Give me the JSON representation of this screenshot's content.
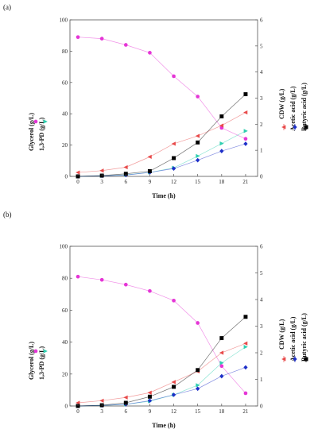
{
  "chart_data": [
    {
      "panel_label": "(a)",
      "type": "line",
      "xlabel": "Time (h)",
      "ylabel_left": [
        "Glycerol (g/L)",
        "1,3-PD (g/L)"
      ],
      "ylabel_right": [
        "CDW (g/L)",
        "Acetic acid (g/L)",
        "Butyric acid (g/L)"
      ],
      "x": [
        0,
        3,
        6,
        9,
        12,
        15,
        18,
        21
      ],
      "xticks": [
        "0",
        "3",
        "6",
        "9",
        "12",
        "15",
        "18",
        "21"
      ],
      "xlim": [
        -1,
        22.5
      ],
      "ylim_left": [
        0,
        100
      ],
      "yticks_left": [
        "0",
        "20",
        "40",
        "60",
        "80",
        "100"
      ],
      "ylim_right": [
        0,
        6
      ],
      "yticks_right": [
        "0",
        "1",
        "2",
        "3",
        "4",
        "5",
        "6"
      ],
      "grid": false,
      "series": [
        {
          "key": "glycerol",
          "axis": "left",
          "color": "#e535d6",
          "marker": "circle",
          "values": [
            89,
            88,
            84,
            79,
            64,
            51,
            31,
            24
          ]
        },
        {
          "key": "pd",
          "axis": "left",
          "color": "#2fcfb0",
          "marker": "tri-right",
          "values": [
            0,
            0.3,
            1,
            2.5,
            5.5,
            13,
            21,
            29
          ]
        },
        {
          "key": "cdw",
          "axis": "right",
          "color": "#e84a4a",
          "marker": "tri-left",
          "values": [
            0.15,
            0.22,
            0.35,
            0.75,
            1.25,
            1.55,
            1.95,
            2.45
          ]
        },
        {
          "key": "acetic",
          "axis": "right",
          "color": "#1d2fc8",
          "marker": "diamond",
          "values": [
            0,
            0.02,
            0.05,
            0.15,
            0.3,
            0.62,
            0.97,
            1.25
          ]
        },
        {
          "key": "butyric",
          "axis": "right",
          "color": "#000000",
          "marker": "square",
          "values": [
            0,
            0.03,
            0.1,
            0.2,
            0.7,
            1.3,
            2.3,
            3.15
          ]
        }
      ]
    },
    {
      "panel_label": "(b)",
      "type": "line",
      "xlabel": "Time (h)",
      "ylabel_left": [
        "Glycerol (g/L)",
        "1,3-PD (g/L)"
      ],
      "ylabel_right": [
        "CDW (g/L)",
        "Acetic acid (g/L)",
        "Butyric acid (g/L)"
      ],
      "x": [
        0,
        3,
        6,
        9,
        12,
        15,
        18,
        21
      ],
      "xticks": [
        "0",
        "3",
        "6",
        "9",
        "12",
        "15",
        "18",
        "21"
      ],
      "xlim": [
        -1,
        22.5
      ],
      "ylim_left": [
        0,
        100
      ],
      "yticks_left": [
        "0",
        "20",
        "40",
        "60",
        "80",
        "100"
      ],
      "ylim_right": [
        0,
        6
      ],
      "yticks_right": [
        "0",
        "1",
        "2",
        "3",
        "4",
        "5",
        "6"
      ],
      "grid": false,
      "series": [
        {
          "key": "glycerol",
          "axis": "left",
          "color": "#e535d6",
          "marker": "circle",
          "values": [
            81,
            79,
            76,
            72,
            66,
            52,
            25,
            8
          ]
        },
        {
          "key": "pd",
          "axis": "left",
          "color": "#2fcfb0",
          "marker": "tri-right",
          "values": [
            0,
            0.3,
            1,
            3,
            7,
            13,
            27,
            37
          ]
        },
        {
          "key": "cdw",
          "axis": "right",
          "color": "#e84a4a",
          "marker": "tri-left",
          "values": [
            0.12,
            0.2,
            0.32,
            0.5,
            0.9,
            1.3,
            2.0,
            2.35
          ]
        },
        {
          "key": "acetic",
          "axis": "right",
          "color": "#1d2fc8",
          "marker": "diamond",
          "values": [
            0,
            0.02,
            0.06,
            0.2,
            0.42,
            0.65,
            1.12,
            1.45
          ]
        },
        {
          "key": "butyric",
          "axis": "right",
          "color": "#000000",
          "marker": "square",
          "values": [
            0,
            0.03,
            0.12,
            0.35,
            0.72,
            1.35,
            2.55,
            3.35
          ]
        }
      ]
    }
  ]
}
